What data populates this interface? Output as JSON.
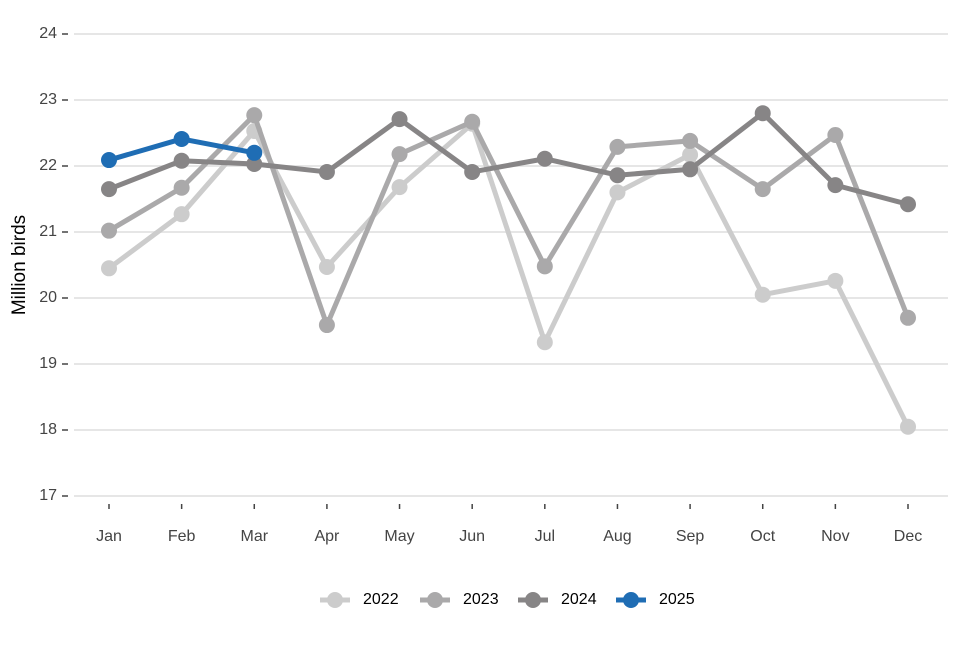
{
  "chart_data": {
    "type": "line",
    "ylabel": "Million birds",
    "categories": [
      "Jan",
      "Feb",
      "Mar",
      "Apr",
      "May",
      "Jun",
      "Jul",
      "Aug",
      "Sep",
      "Oct",
      "Nov",
      "Dec"
    ],
    "series": [
      {
        "name": "2022",
        "color": "#cccccc",
        "values": [
          20.45,
          21.27,
          22.53,
          20.47,
          21.68,
          22.64,
          19.33,
          21.6,
          22.17,
          20.05,
          20.26,
          18.05
        ]
      },
      {
        "name": "2023",
        "color": "#aaa9aa",
        "values": [
          21.02,
          21.67,
          22.77,
          19.59,
          22.18,
          22.67,
          20.48,
          22.29,
          22.38,
          21.65,
          22.47,
          19.7
        ]
      },
      {
        "name": "2024",
        "color": "#878586",
        "values": [
          21.65,
          22.08,
          22.03,
          21.91,
          22.71,
          21.91,
          22.11,
          21.86,
          21.95,
          22.8,
          21.71,
          21.42
        ]
      },
      {
        "name": "2025",
        "color": "#1f6db4",
        "values": [
          22.09,
          22.41,
          22.2,
          null,
          null,
          null,
          null,
          null,
          null,
          null,
          null,
          null
        ]
      }
    ],
    "ylim": [
      17,
      24
    ],
    "yticks": [
      17,
      18,
      19,
      20,
      21,
      22,
      23,
      24
    ],
    "grid": true,
    "legend": "bottom"
  }
}
